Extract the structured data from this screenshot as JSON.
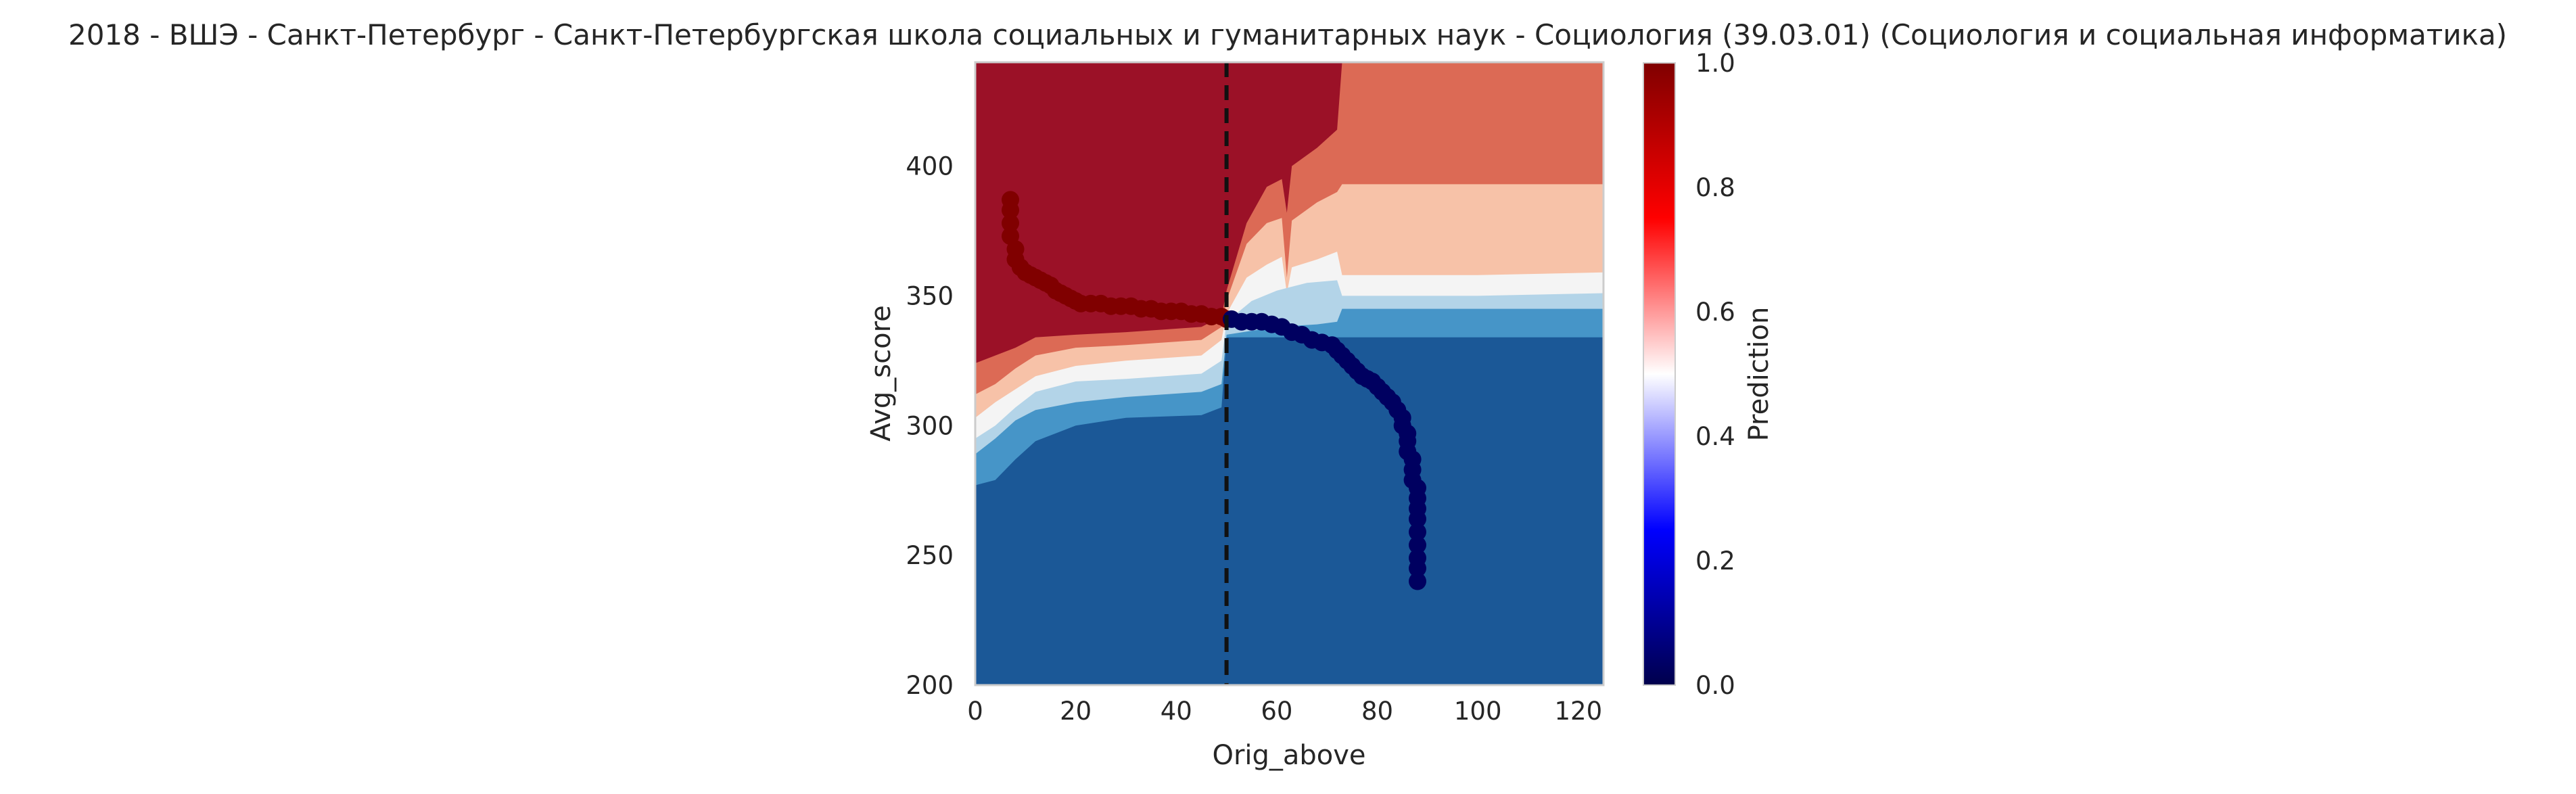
{
  "chart_data": {
    "type": "contour",
    "title": "2018 - ВШЭ - Санкт-Петербург - Санкт-Петербургская школа социальных и гуманитарных наук - Социология (39.03.01) (Социология и социальная информатика)",
    "xlabel": "Orig_above",
    "ylabel": "Avg_score",
    "xlim": [
      0,
      125
    ],
    "ylim": [
      200,
      440
    ],
    "xticks": [
      "0",
      "20",
      "40",
      "60",
      "80",
      "100",
      "120"
    ],
    "yticks": [
      "200",
      "250",
      "300",
      "350",
      "400"
    ],
    "grid": false,
    "cutoff_line": {
      "x": 50,
      "style": "dashed",
      "color": "#111111"
    },
    "colorbar": {
      "label": "Prediction",
      "range": [
        0,
        1
      ],
      "ticks": [
        "0.0",
        "0.2",
        "0.4",
        "0.6",
        "0.8",
        "1.0"
      ],
      "colormap": "seismic"
    },
    "contour_levels": [
      {
        "level": "0.0-0.2",
        "color": "#1b5897"
      },
      {
        "level": "0.2-0.3",
        "color": "#4695c8"
      },
      {
        "level": "0.3-0.4",
        "color": "#b3d4e8"
      },
      {
        "level": "0.4-0.5",
        "color": "#f4f4f4"
      },
      {
        "level": "0.5-0.7",
        "color": "#f7c2a8"
      },
      {
        "level": "0.7-0.8",
        "color": "#dc6a55"
      },
      {
        "level": "0.8-1.0",
        "color": "#9b1127"
      }
    ],
    "points": {
      "admitted": {
        "color": "#800000",
        "xy": [
          [
            7,
            387
          ],
          [
            7,
            383
          ],
          [
            7,
            378
          ],
          [
            7,
            373
          ],
          [
            8,
            368
          ],
          [
            8,
            364
          ],
          [
            9,
            361
          ],
          [
            10,
            359
          ],
          [
            11,
            358
          ],
          [
            12,
            357
          ],
          [
            13,
            356
          ],
          [
            14,
            355
          ],
          [
            15,
            354
          ],
          [
            16,
            352
          ],
          [
            17,
            351
          ],
          [
            18,
            350
          ],
          [
            19,
            349
          ],
          [
            20,
            348
          ],
          [
            21,
            347
          ],
          [
            23,
            347
          ],
          [
            25,
            347
          ],
          [
            27,
            346
          ],
          [
            29,
            346
          ],
          [
            31,
            346
          ],
          [
            33,
            345
          ],
          [
            35,
            345
          ],
          [
            37,
            344
          ],
          [
            39,
            344
          ],
          [
            41,
            344
          ],
          [
            43,
            343
          ],
          [
            45,
            343
          ],
          [
            47,
            342
          ],
          [
            49,
            342
          ],
          [
            50,
            341
          ]
        ]
      },
      "not_admitted": {
        "color": "#000060",
        "xy": [
          [
            51,
            341
          ],
          [
            53,
            340
          ],
          [
            55,
            340
          ],
          [
            57,
            340
          ],
          [
            59,
            339
          ],
          [
            61,
            338
          ],
          [
            63,
            336
          ],
          [
            65,
            335
          ],
          [
            67,
            333
          ],
          [
            69,
            332
          ],
          [
            71,
            331
          ],
          [
            72,
            329
          ],
          [
            73,
            327
          ],
          [
            74,
            325
          ],
          [
            75,
            323
          ],
          [
            76,
            321
          ],
          [
            77,
            319
          ],
          [
            78,
            318
          ],
          [
            79,
            317
          ],
          [
            80,
            315
          ],
          [
            81,
            313
          ],
          [
            82,
            311
          ],
          [
            83,
            309
          ],
          [
            84,
            306
          ],
          [
            85,
            303
          ],
          [
            85,
            300
          ],
          [
            86,
            297
          ],
          [
            86,
            294
          ],
          [
            86,
            290
          ],
          [
            87,
            287
          ],
          [
            87,
            283
          ],
          [
            87,
            279
          ],
          [
            88,
            276
          ],
          [
            88,
            272
          ],
          [
            88,
            268
          ],
          [
            88,
            264
          ],
          [
            88,
            259
          ],
          [
            88,
            254
          ],
          [
            88,
            249
          ],
          [
            88,
            245
          ],
          [
            88,
            240
          ]
        ]
      }
    }
  }
}
